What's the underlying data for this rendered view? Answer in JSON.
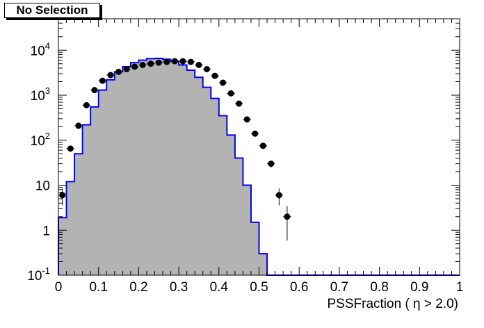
{
  "title": "No Selection",
  "chart_data": {
    "type": "histogram",
    "xlabel": "PSSFraction ( η > 2.0)",
    "xlim": [
      0,
      1
    ],
    "ylim": [
      0.1,
      50000
    ],
    "yscale": "log",
    "grid": false,
    "x_tick_labels": [
      "0",
      "0.1",
      "0.2",
      "0.3",
      "0.4",
      "0.5",
      "0.6",
      "0.7",
      "0.8",
      "0.9",
      "1"
    ],
    "y_tick_labels": [
      {
        "value": 0.1,
        "base": "10",
        "exp": "-1"
      },
      {
        "value": 1,
        "base": "1",
        "exp": ""
      },
      {
        "value": 10,
        "base": "10",
        "exp": ""
      },
      {
        "value": 100,
        "base": "10",
        "exp": "2"
      },
      {
        "value": 1000,
        "base": "10",
        "exp": "3"
      },
      {
        "value": 10000,
        "base": "10",
        "exp": "4"
      }
    ],
    "bin_width": 0.02,
    "bin_edges_start": 0,
    "series": [
      {
        "style": "filled-step",
        "fill_color": "#b3b3b3",
        "line_color": "#0000ff",
        "values": [
          1.9,
          12,
          50,
          220,
          550,
          1300,
          2200,
          3300,
          4300,
          5300,
          6000,
          6500,
          6600,
          6300,
          5700,
          4700,
          3600,
          2500,
          1500,
          850,
          350,
          130,
          40,
          10,
          1.5,
          0.3,
          0.1,
          0.1,
          0.1,
          0.1,
          0.1,
          0.1,
          0.1,
          0.1,
          0.1,
          0.1,
          0.1,
          0.1,
          0.1,
          0.1,
          0.1,
          0.1,
          0.1,
          0.1,
          0.1,
          0.1,
          0.1,
          0.1,
          0.1,
          0.1
        ]
      },
      {
        "style": "points",
        "marker_color": "#000000",
        "x": [
          0.01,
          0.03,
          0.05,
          0.07,
          0.09,
          0.11,
          0.13,
          0.15,
          0.17,
          0.19,
          0.21,
          0.23,
          0.25,
          0.27,
          0.29,
          0.31,
          0.33,
          0.35,
          0.37,
          0.39,
          0.41,
          0.43,
          0.45,
          0.47,
          0.49,
          0.51,
          0.53,
          0.55,
          0.57
        ],
        "y": [
          6,
          65,
          210,
          600,
          1300,
          2100,
          2800,
          3300,
          3800,
          4300,
          4700,
          5000,
          5300,
          5500,
          5700,
          5700,
          5500,
          4700,
          3800,
          2700,
          1900,
          1100,
          650,
          290,
          140,
          75,
          30,
          6,
          2
        ]
      }
    ]
  }
}
